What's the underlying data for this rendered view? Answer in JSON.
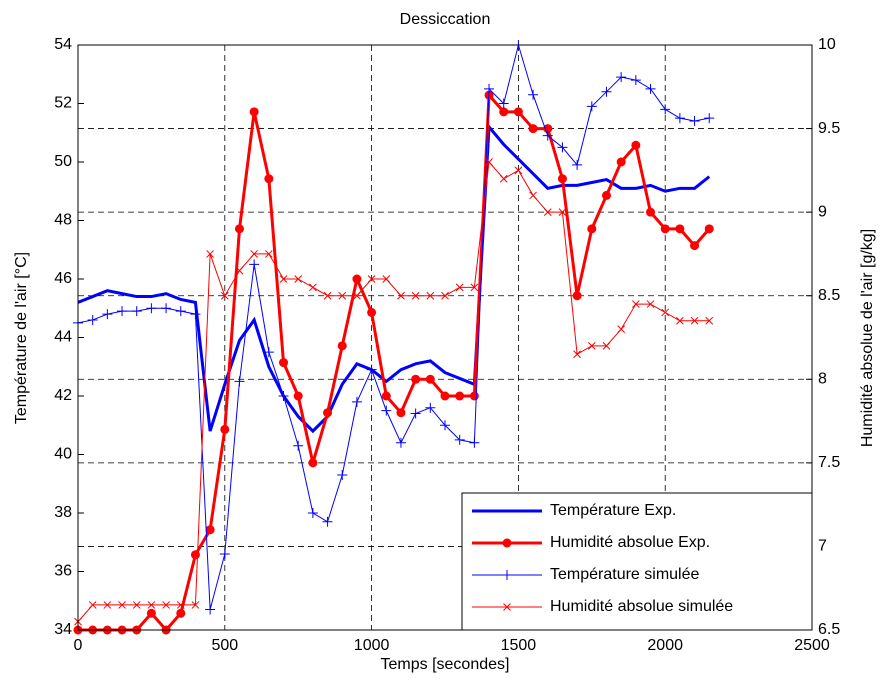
{
  "chart_data": {
    "type": "line",
    "title": "Dessiccation",
    "x_label": "Temps [secondes]",
    "y_label": "Température de l'air [°C]",
    "y2_label": "Humidité absolue de l'air [g/kg]",
    "x": [
      0,
      50,
      100,
      150,
      200,
      250,
      300,
      350,
      400,
      450,
      500,
      550,
      600,
      650,
      700,
      750,
      800,
      850,
      900,
      950,
      1000,
      1050,
      1100,
      1150,
      1200,
      1250,
      1300,
      1350,
      1400,
      1450,
      1500,
      1550,
      1600,
      1650,
      1700,
      1750,
      1800,
      1850,
      1900,
      1950,
      2000,
      2050,
      2100,
      2150
    ],
    "xlim": [
      0,
      2500
    ],
    "xticks": [
      0,
      500,
      1000,
      1500,
      2000,
      2500
    ],
    "ylim": [
      34,
      54
    ],
    "yticks": [
      34,
      36,
      38,
      40,
      42,
      44,
      46,
      48,
      50,
      52,
      54
    ],
    "y2lim": [
      6.5,
      10
    ],
    "y2ticks": [
      6.5,
      7,
      7.5,
      8,
      8.5,
      9,
      9.5,
      10
    ],
    "grid": true,
    "legend": "lower right",
    "series": [
      {
        "name": "Température Exp.",
        "color": "#0000ff",
        "axis": "y",
        "marker": "none",
        "width": 3,
        "values": [
          45.2,
          45.4,
          45.6,
          45.5,
          45.4,
          45.4,
          45.5,
          45.3,
          45.2,
          40.8,
          42.4,
          43.9,
          44.6,
          43.0,
          42.0,
          41.3,
          40.8,
          41.3,
          42.4,
          43.1,
          42.9,
          42.5,
          42.9,
          43.1,
          43.2,
          42.8,
          42.6,
          42.4,
          51.2,
          50.6,
          50.1,
          49.6,
          49.1,
          49.2,
          49.2,
          49.3,
          49.4,
          49.1,
          49.1,
          49.2,
          49.0,
          49.1,
          49.1,
          49.5
        ]
      },
      {
        "name": "Humidité absolue Exp.",
        "color": "#ff0000",
        "axis": "y2",
        "marker": "dot",
        "width": 3,
        "values": [
          6.5,
          6.5,
          6.5,
          6.5,
          6.5,
          6.6,
          6.5,
          6.6,
          6.95,
          7.1,
          7.7,
          8.9,
          9.6,
          9.2,
          8.1,
          7.9,
          7.5,
          7.8,
          8.2,
          8.6,
          8.4,
          7.9,
          7.8,
          8.0,
          8.0,
          7.9,
          7.9,
          7.9,
          9.7,
          9.6,
          9.6,
          9.5,
          9.5,
          9.2,
          8.5,
          8.9,
          9.1,
          9.3,
          9.4,
          9.0,
          8.9,
          8.9,
          8.8,
          8.9
        ]
      },
      {
        "name": "Température simulée",
        "color": "#0000ff",
        "axis": "y",
        "marker": "plus",
        "width": 1,
        "values": [
          44.5,
          44.6,
          44.8,
          44.9,
          44.9,
          45.0,
          45.0,
          44.9,
          44.8,
          34.7,
          36.6,
          42.5,
          46.5,
          43.5,
          42.0,
          40.3,
          38.0,
          37.7,
          39.3,
          41.8,
          42.9,
          41.5,
          40.4,
          41.4,
          41.6,
          41.0,
          40.5,
          40.4,
          52.5,
          52.0,
          54.0,
          52.3,
          50.9,
          50.5,
          49.9,
          51.9,
          52.4,
          52.9,
          52.8,
          52.5,
          51.8,
          51.5,
          51.4,
          51.5
        ]
      },
      {
        "name": "Humidité absolue simulée",
        "color": "#ff0000",
        "axis": "y2",
        "marker": "cross",
        "width": 1,
        "values": [
          6.55,
          6.65,
          6.65,
          6.65,
          6.65,
          6.65,
          6.65,
          6.65,
          6.65,
          8.75,
          8.5,
          8.65,
          8.75,
          8.75,
          8.6,
          8.6,
          8.55,
          8.5,
          8.5,
          8.5,
          8.6,
          8.6,
          8.5,
          8.5,
          8.5,
          8.5,
          8.55,
          8.55,
          9.3,
          9.2,
          9.25,
          9.1,
          9.0,
          9.0,
          8.15,
          8.2,
          8.2,
          8.3,
          8.45,
          8.45,
          8.4,
          8.35,
          8.35,
          8.35
        ]
      }
    ]
  }
}
